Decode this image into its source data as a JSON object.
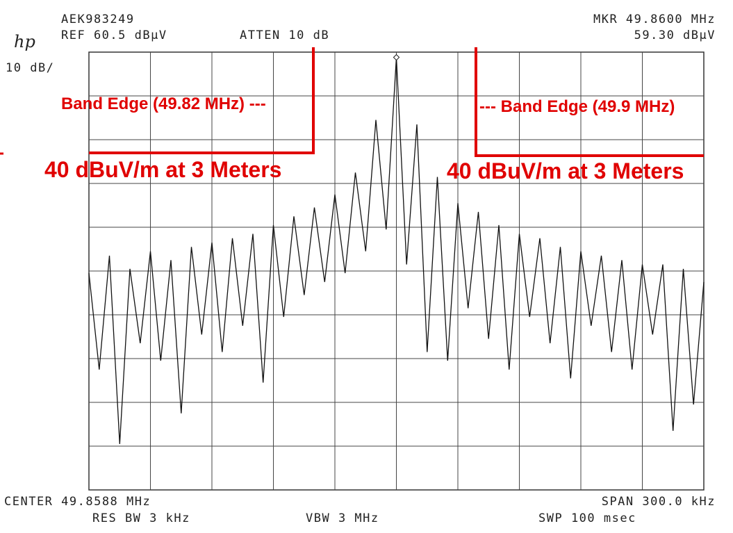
{
  "chart_data": {
    "type": "line",
    "header": {
      "id": "AEK983249",
      "ref": "REF 60.5 dBµV",
      "atten": "ATTEN 10 dB",
      "marker_freq": "MKR 49.8600 MHz",
      "marker_level": "59.30 dBµV",
      "logo": "hp",
      "scale": "10 dB/"
    },
    "footer": {
      "center": "CENTER 49.8588 MHz",
      "span": "SPAN 300.0 kHz",
      "rbw": "RES BW 3 kHz",
      "vbw": "VBW 3 MHz",
      "sweep": "SWP 100 msec"
    },
    "annotations": [
      "Band Edge (49.82 MHz) ---",
      "--- Band Edge (49.9 MHz)",
      "40 dBuV/m at 3 Meters",
      "40 dBuV/m at 3 Meters"
    ],
    "annotation_color": "#e00000",
    "xlim": [
      49.7088,
      50.0088
    ],
    "ylim": [
      -39.5,
      60.5
    ],
    "grid": true,
    "x": [
      49.7088,
      49.7138,
      49.7188,
      49.7238,
      49.7288,
      49.7338,
      49.7388,
      49.7438,
      49.7488,
      49.7538,
      49.7588,
      49.7638,
      49.7688,
      49.7738,
      49.7788,
      49.7838,
      49.7888,
      49.7938,
      49.7988,
      49.8038,
      49.8088,
      49.8138,
      49.8188,
      49.8238,
      49.8288,
      49.8338,
      49.8388,
      49.8438,
      49.8488,
      49.8538,
      49.8588,
      49.8638,
      49.8688,
      49.8738,
      49.8788,
      49.8838,
      49.8888,
      49.8938,
      49.8988,
      49.9038,
      49.9088,
      49.9138,
      49.9188,
      49.9238,
      49.9288,
      49.9338,
      49.9388,
      49.9438,
      49.9488,
      49.9538,
      49.9588,
      49.9638,
      49.9688,
      49.9738,
      49.9788,
      49.9838,
      49.9888,
      49.9938,
      49.9988,
      50.0038,
      50.0088
    ],
    "series": [
      {
        "color": "#111111",
        "values": [
          10,
          -12,
          14,
          -29,
          11,
          -6,
          15,
          -10,
          13,
          -22,
          16,
          -4,
          17,
          -8,
          18,
          -2,
          19,
          -15,
          21,
          0,
          23,
          5,
          25,
          8,
          28,
          10,
          33,
          15,
          45,
          20,
          59.3,
          12,
          44,
          -8,
          32,
          -10,
          26,
          2,
          24,
          -5,
          21,
          -12,
          19,
          0,
          18,
          -6,
          16,
          -14,
          15,
          -2,
          14,
          -8,
          13,
          -12,
          12,
          -4,
          12,
          -26,
          11,
          -20,
          8
        ]
      }
    ]
  }
}
